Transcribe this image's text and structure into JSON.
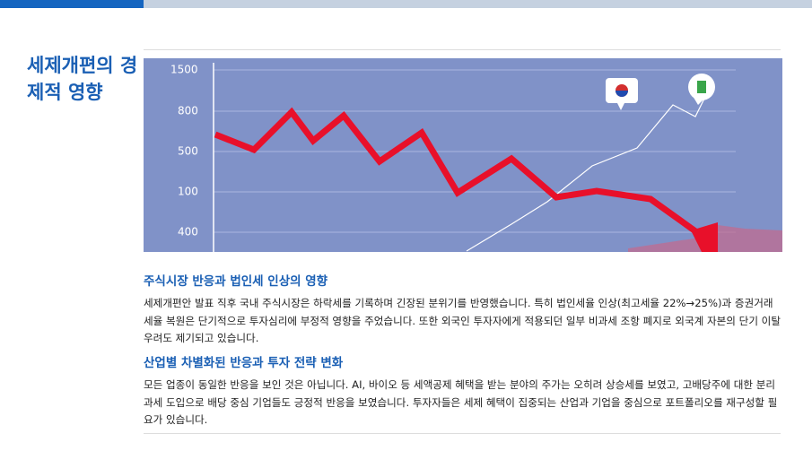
{
  "title": "세제개편의 경제적 영향",
  "figure": {
    "axis_labels": [
      "1500",
      "800",
      "500",
      "100",
      "400"
    ]
  },
  "sections": [
    {
      "heading": "주식시장 반응과 법인세 인상의 영향",
      "body": "세제개편안 발표 직후 국내 주식시장은 하락세를 기록하며 긴장된 분위기를 반영했습니다. 특히 법인세율 인상(최고세율 22%→25%)과 증권거래세율 복원은 단기적으로 투자심리에 부정적 영향을 주었습니다. 또한 외국인 투자자에게 적용되던 일부 비과세 조항 폐지로 외국계 자본의 단기 이탈 우려도 제기되고 있습니다."
    },
    {
      "heading": "산업별 차별화된 반응과 투자 전략 변화",
      "body": "모든 업종이 동일한 반응을 보인 것은 아닙니다. AI, 바이오 등 세액공제 혜택을 받는 분야의 주가는 오히려 상승세를 보였고, 고배당주에 대한 분리과세 도입으로 배당 중심 기업들도 긍정적 반응을 보였습니다. 투자자들은 세제 혜택이 집중되는 산업과 기업을 중심으로 포트폴리오를 재구성할 필요가 있습니다."
    }
  ]
}
